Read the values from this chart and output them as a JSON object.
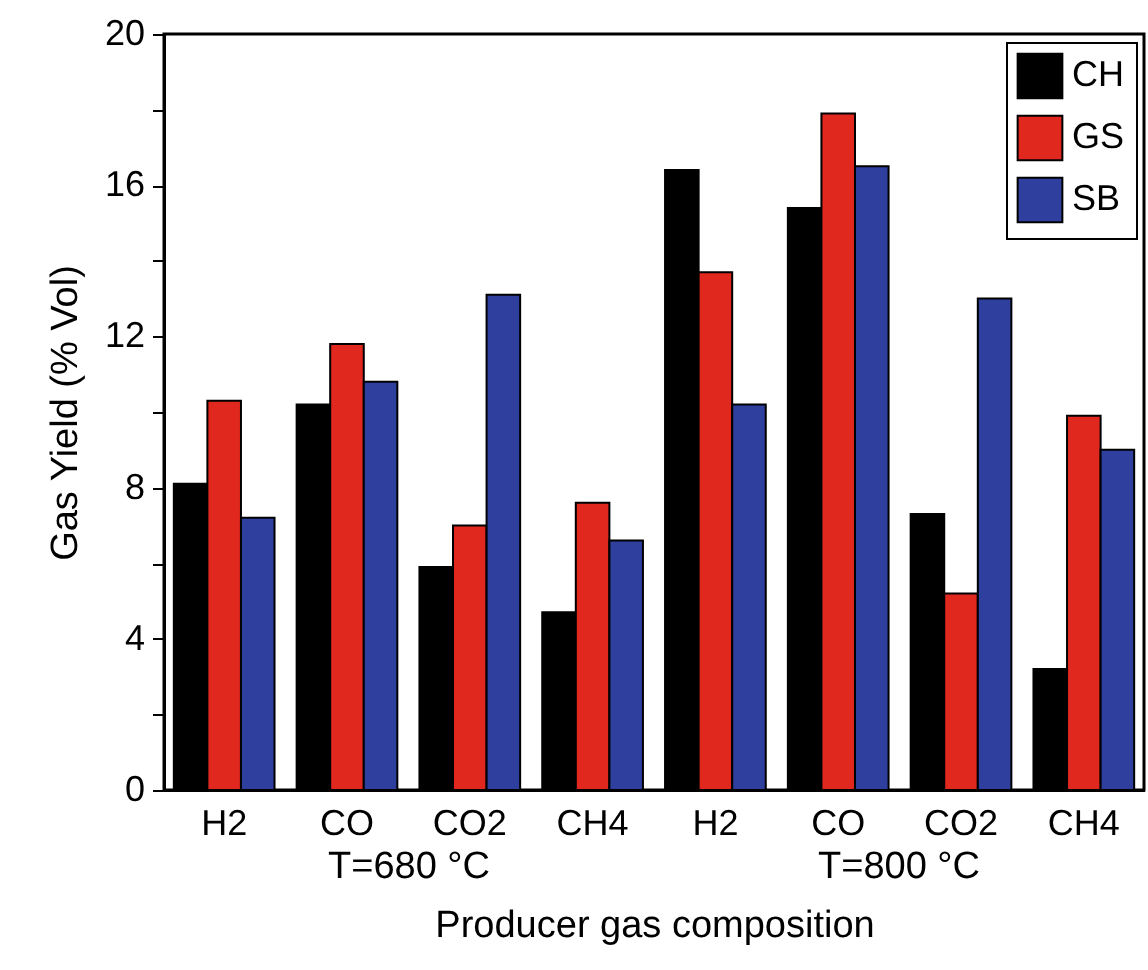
{
  "chart_data": {
    "type": "bar",
    "xlabel": "Producer gas composition",
    "ylabel": "Gas Yield (% Vol)",
    "categories": [
      "H2",
      "CO",
      "CO2",
      "CH4",
      "H2",
      "CO",
      "CO2",
      "CH4"
    ],
    "series": [
      {
        "name": "CH",
        "color": "#000000",
        "values": [
          8.1,
          10.2,
          5.9,
          4.7,
          16.4,
          15.4,
          7.3,
          3.2
        ]
      },
      {
        "name": "GS",
        "color": "#e0281e",
        "values": [
          10.3,
          11.8,
          7.0,
          7.6,
          13.7,
          17.9,
          5.2,
          9.9
        ]
      },
      {
        "name": "SB",
        "color": "#2e3f9e",
        "values": [
          7.2,
          10.8,
          13.1,
          6.6,
          10.2,
          16.5,
          13.0,
          9.0
        ]
      }
    ],
    "annotations": [
      "T=680 °C",
      "T=800 °C"
    ],
    "ylim": [
      0,
      20
    ],
    "yticks": [
      0,
      {
        "value": 2,
        "label": null
      },
      4,
      {
        "value": 6,
        "label": null
      },
      8,
      {
        "value": 10,
        "label": null
      },
      12,
      {
        "value": 14,
        "label": null
      },
      16,
      {
        "value": 18,
        "label": null
      },
      20
    ],
    "grid": false,
    "legend": "top right"
  }
}
